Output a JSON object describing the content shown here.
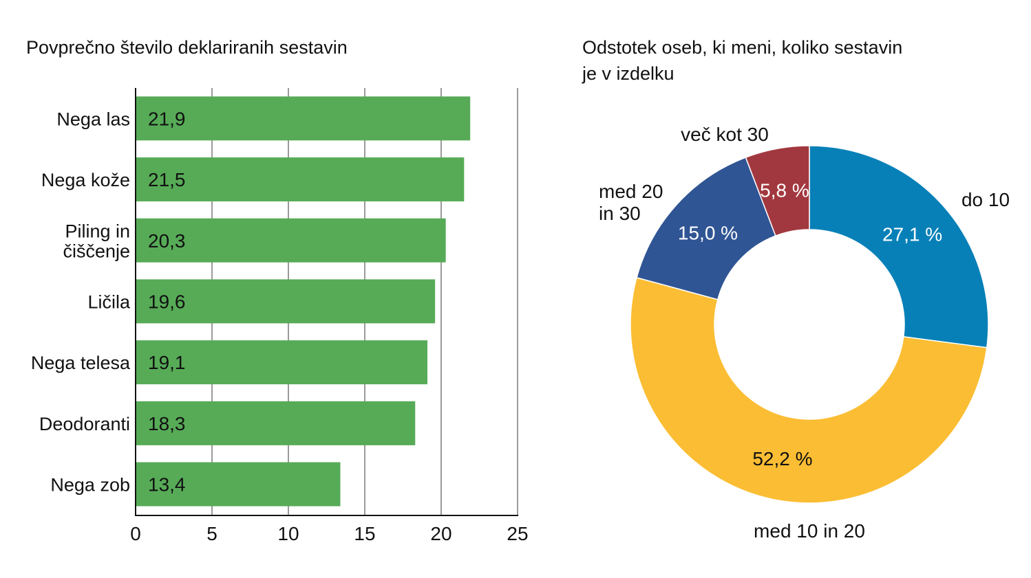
{
  "chart_data": [
    {
      "type": "bar",
      "orientation": "horizontal",
      "title": "Povprečno število deklariranih sestavin",
      "categories": [
        [
          "Nega las"
        ],
        [
          "Nega kože"
        ],
        [
          "Piling in",
          "čiščenje"
        ],
        [
          "Ličila"
        ],
        [
          "Nega telesa"
        ],
        [
          "Deodoranti"
        ],
        [
          "Nega zob"
        ]
      ],
      "values": [
        21.9,
        21.5,
        20.3,
        19.6,
        19.1,
        18.3,
        13.4
      ],
      "value_labels": [
        "21,9",
        "21,5",
        "20,3",
        "19,6",
        "19,1",
        "18,3",
        "13,4"
      ],
      "xlim": [
        0,
        25
      ],
      "xticks": [
        0,
        5,
        10,
        15,
        20,
        25
      ],
      "xtick_labels": [
        "0",
        "5",
        "10",
        "15",
        "20",
        "25"
      ],
      "grid": true,
      "bar_color": "#57AB57"
    },
    {
      "type": "pie",
      "variant": "donut",
      "title_lines": [
        "Odstotek oseb, ki meni, koliko sestavin",
        "je v izdelku"
      ],
      "slices": [
        {
          "label": [
            "do 10"
          ],
          "value": 27.1,
          "value_label": "27,1 %",
          "color": "#0780B8",
          "value_text_color": "#ffffff"
        },
        {
          "label": [
            "med 10 in 20"
          ],
          "value": 52.2,
          "value_label": "52,2 %",
          "color": "#FBBD33",
          "value_text_color": "#111111"
        },
        {
          "label": [
            "med 20",
            "in 30"
          ],
          "value": 15.0,
          "value_label": "15,0 %",
          "color": "#305594",
          "value_text_color": "#ffffff"
        },
        {
          "label": [
            "več kot 30"
          ],
          "value": 5.8,
          "value_label": "5,8 %",
          "color": "#A2383F",
          "value_text_color": "#ffffff"
        }
      ]
    }
  ]
}
